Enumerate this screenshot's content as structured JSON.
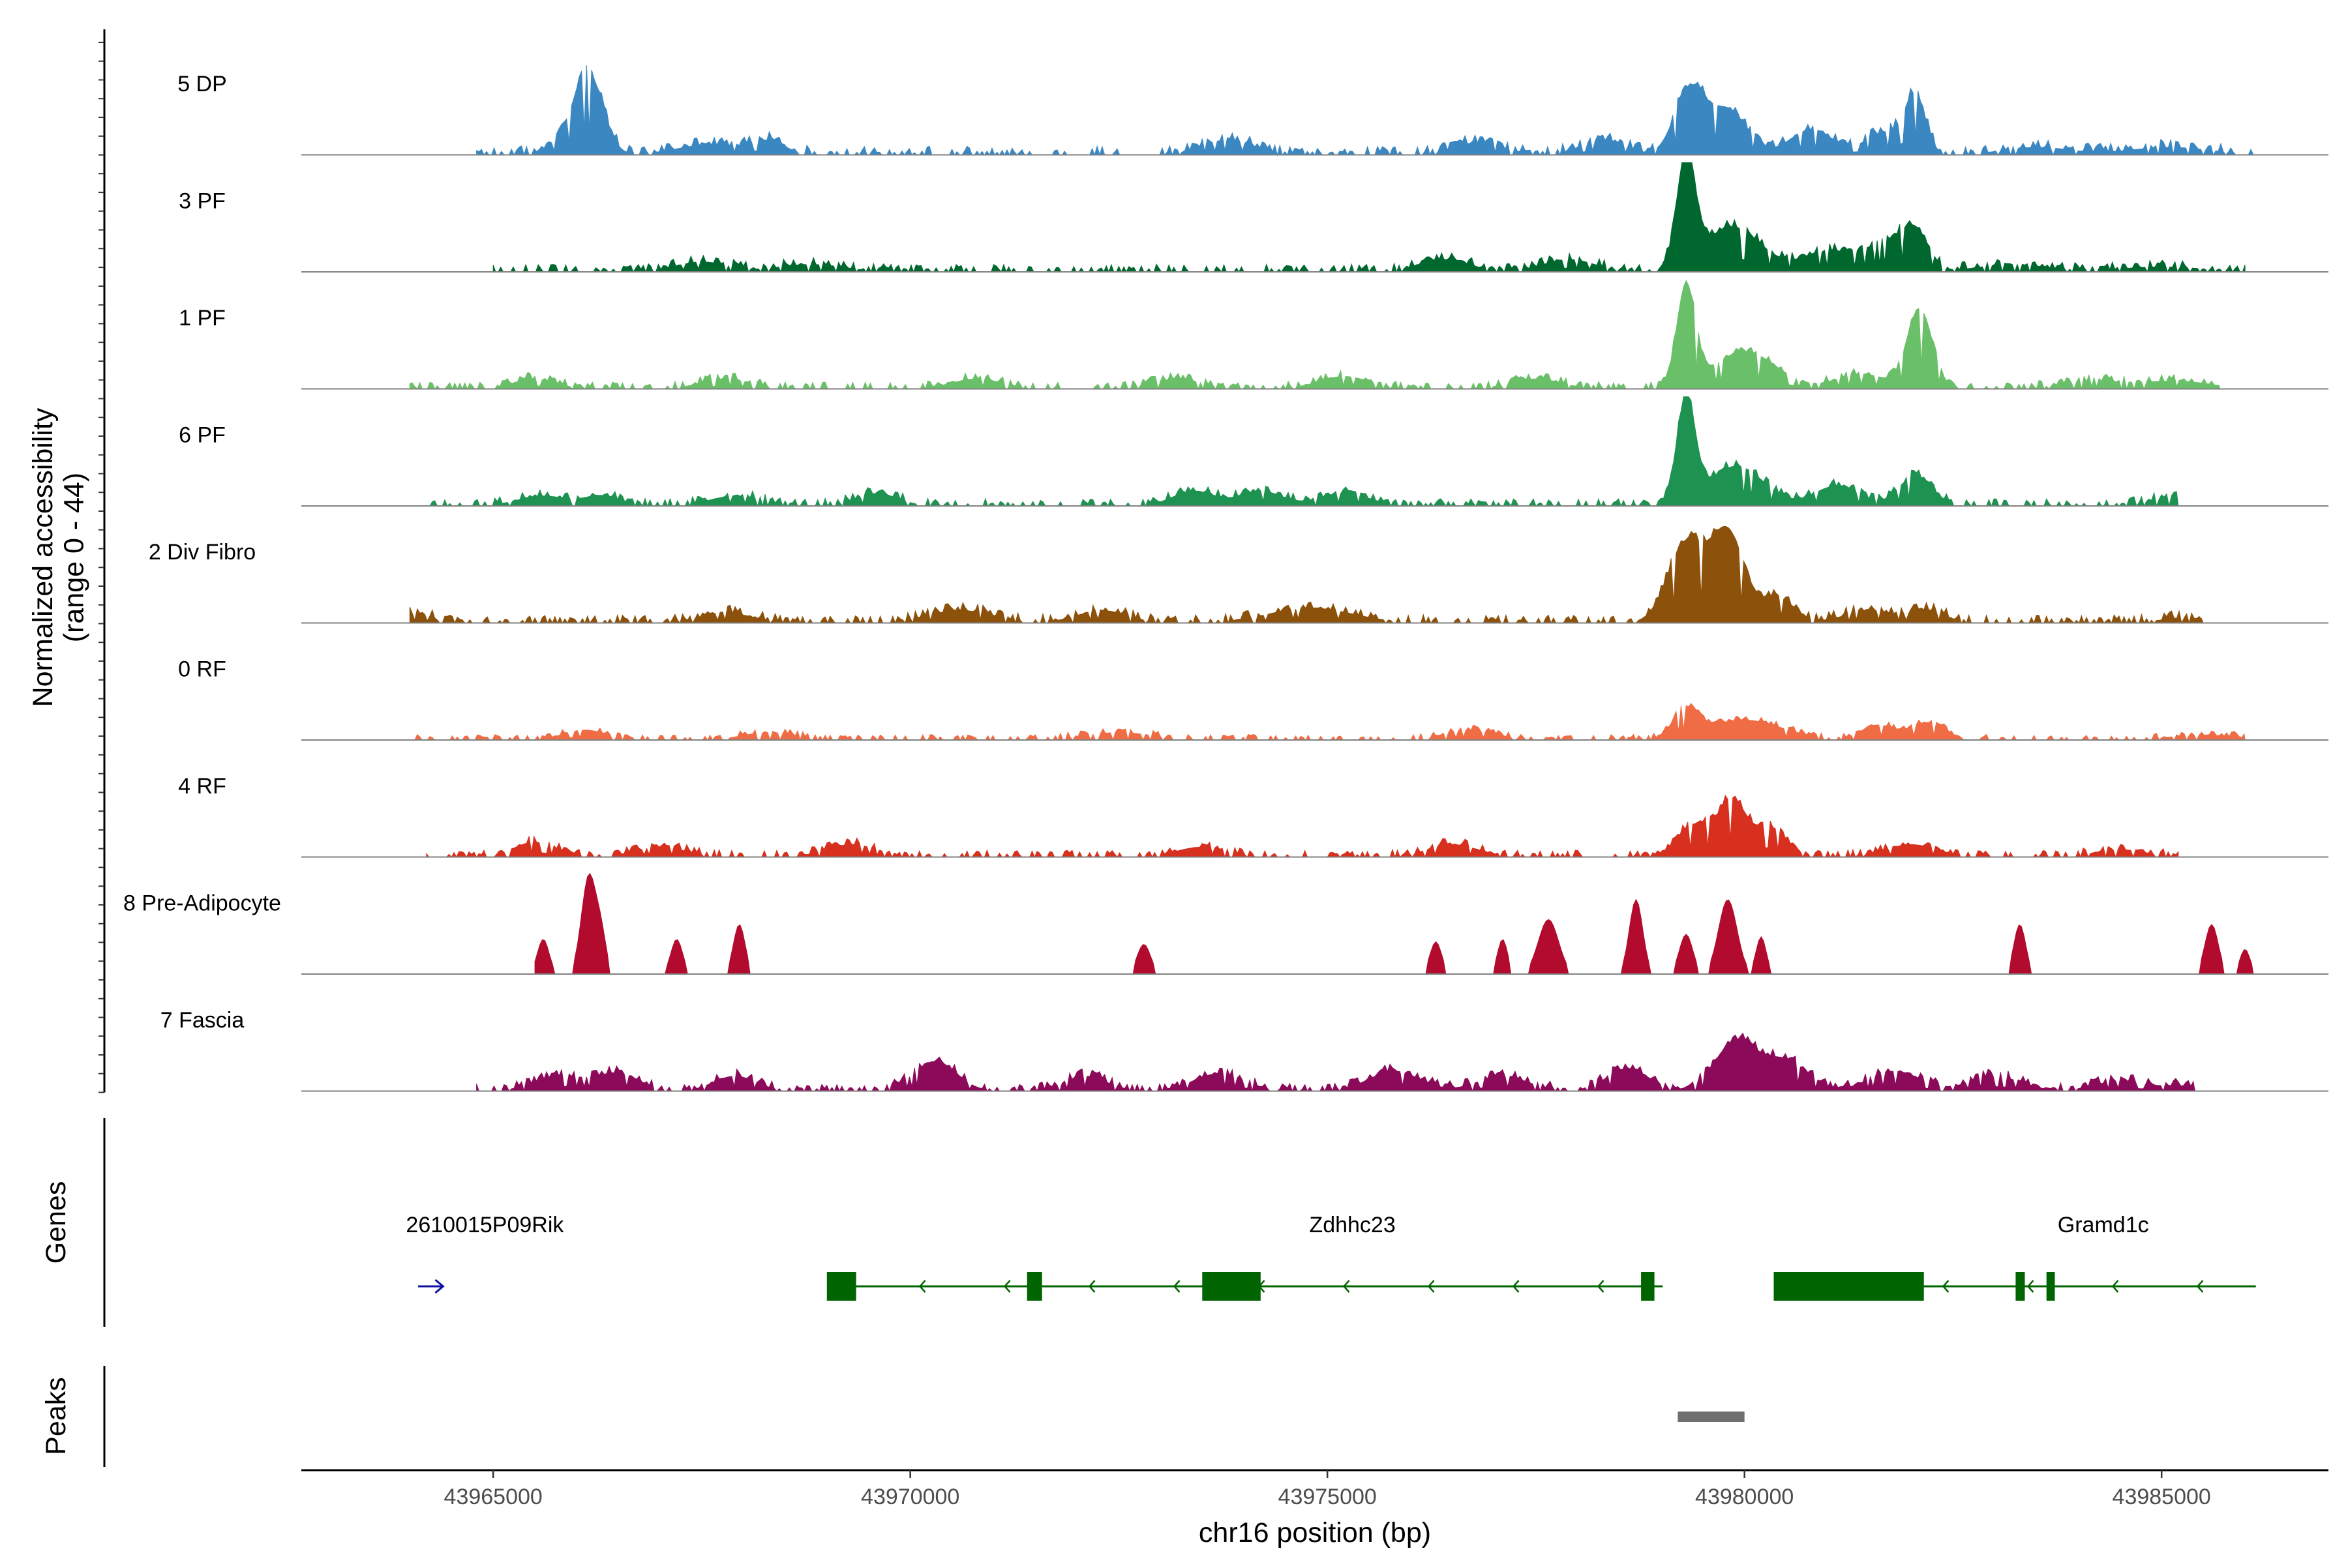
{
  "chart_data": {
    "type": "area",
    "title": "",
    "xlabel": "chr16 position (bp)",
    "ylabel": "Normalized accessibility\n(range 0 - 44)",
    "ylabel_lines": [
      "Normalized accessibility",
      "(range 0 - 44)"
    ],
    "ylim": [
      0,
      44
    ],
    "xlim": [
      43962700,
      43987000
    ],
    "x_ticks": [
      43965000,
      43970000,
      43975000,
      43980000,
      43985000
    ],
    "x_tick_labels": [
      "43965000",
      "43970000",
      "43975000",
      "43980000",
      "43985000"
    ],
    "tracks": [
      {
        "name": "5 DP",
        "color": "#3a87c2",
        "peaks": [
          [
            43966150,
            30,
            170
          ],
          [
            43965900,
            6,
            220
          ],
          [
            43967600,
            4,
            400
          ],
          [
            43968300,
            5,
            200
          ],
          [
            43973800,
            6,
            300
          ],
          [
            43976800,
            5,
            260
          ],
          [
            43978300,
            6,
            260
          ],
          [
            43979340,
            26,
            180
          ],
          [
            43979800,
            18,
            220
          ],
          [
            43980800,
            10,
            260
          ],
          [
            43981700,
            9,
            240
          ],
          [
            43982050,
            22,
            120
          ],
          [
            43983500,
            3,
            400
          ],
          [
            43985100,
            3,
            500
          ]
        ],
        "noise": 2.5,
        "range": [
          43964800,
          43986100
        ]
      },
      {
        "name": "3 PF",
        "color": "#00682f",
        "peaks": [
          [
            43967500,
            4,
            300
          ],
          [
            43968800,
            3,
            400
          ],
          [
            43976400,
            5,
            300
          ],
          [
            43977900,
            5,
            300
          ],
          [
            43979300,
            44,
            110
          ],
          [
            43979850,
            18,
            350
          ],
          [
            43981000,
            8,
            300
          ],
          [
            43981700,
            11,
            260
          ],
          [
            43982050,
            14,
            160
          ],
          [
            43983200,
            3,
            400
          ],
          [
            43985000,
            2,
            500
          ]
        ],
        "noise": 2.2,
        "range": [
          43965000,
          43986000
        ]
      },
      {
        "name": "1 PF",
        "color": "#6abf69",
        "peaks": [
          [
            43965500,
            4,
            250
          ],
          [
            43967800,
            4,
            300
          ],
          [
            43970800,
            4,
            300
          ],
          [
            43973200,
            4,
            300
          ],
          [
            43975200,
            5,
            300
          ],
          [
            43977500,
            4,
            300
          ],
          [
            43979300,
            40,
            110
          ],
          [
            43980000,
            15,
            380
          ],
          [
            43981400,
            6,
            300
          ],
          [
            43982100,
            32,
            150
          ],
          [
            43984200,
            3,
            400
          ],
          [
            43985200,
            3,
            400
          ]
        ],
        "noise": 2.0,
        "range": [
          43964000,
          43985700
        ]
      },
      {
        "name": "6 PF",
        "color": "#1e9250",
        "peaks": [
          [
            43965600,
            4,
            300
          ],
          [
            43966300,
            4,
            200
          ],
          [
            43967900,
            4,
            300
          ],
          [
            43969600,
            5,
            250
          ],
          [
            43973400,
            6,
            250
          ],
          [
            43974200,
            6,
            250
          ],
          [
            43975200,
            5,
            300
          ],
          [
            43979300,
            42,
            110
          ],
          [
            43979900,
            16,
            330
          ],
          [
            43981100,
            8,
            260
          ],
          [
            43982050,
            12,
            200
          ],
          [
            43985100,
            3,
            300
          ]
        ],
        "noise": 2.1,
        "range": [
          43964000,
          43985200
        ]
      },
      {
        "name": "2 Div Fibro",
        "color": "#8c510a",
        "peaks": [
          [
            43964100,
            4,
            150
          ],
          [
            43967800,
            4,
            300
          ],
          [
            43970600,
            5,
            400
          ],
          [
            43972300,
            5,
            300
          ],
          [
            43974800,
            6,
            500
          ],
          [
            43979300,
            32,
            220
          ],
          [
            43979800,
            36,
            200
          ],
          [
            43980400,
            10,
            200
          ],
          [
            43981500,
            5,
            300
          ],
          [
            43982200,
            5,
            200
          ],
          [
            43985300,
            2,
            300
          ]
        ],
        "noise": 2.3,
        "range": [
          43964000,
          43985500
        ]
      },
      {
        "name": "0 RF",
        "color": "#ef6c44",
        "peaks": [
          [
            43966100,
            4,
            250
          ],
          [
            43968300,
            3,
            300
          ],
          [
            43972500,
            3,
            400
          ],
          [
            43976700,
            4,
            300
          ],
          [
            43979300,
            11,
            150
          ],
          [
            43980000,
            8,
            450
          ],
          [
            43981600,
            6,
            200
          ],
          [
            43982200,
            7,
            200
          ],
          [
            43985500,
            2,
            400
          ]
        ],
        "noise": 1.6,
        "range": [
          43964000,
          43986000
        ]
      },
      {
        "name": "4 RF",
        "color": "#d7301f",
        "peaks": [
          [
            43965500,
            6,
            250
          ],
          [
            43967000,
            4,
            300
          ],
          [
            43969300,
            5,
            300
          ],
          [
            43973500,
            4,
            300
          ],
          [
            43976500,
            5,
            300
          ],
          [
            43979400,
            13,
            200
          ],
          [
            43979850,
            22,
            160
          ],
          [
            43980300,
            12,
            200
          ],
          [
            43982000,
            5,
            300
          ],
          [
            43984500,
            3,
            300
          ]
        ],
        "noise": 2.0,
        "range": [
          43964200,
          43985200
        ]
      },
      {
        "name": "8 Pre-Adipocyte",
        "color": "#b30b2d",
        "type": "spikes",
        "peaks": [
          [
            43965600,
            14,
            70
          ],
          [
            43966150,
            40,
            90
          ],
          [
            43966300,
            12,
            60
          ],
          [
            43967200,
            14,
            70
          ],
          [
            43967950,
            20,
            70
          ],
          [
            43972800,
            12,
            80
          ],
          [
            43976300,
            13,
            70
          ],
          [
            43977100,
            14,
            60
          ],
          [
            43977650,
            22,
            120
          ],
          [
            43978700,
            30,
            80
          ],
          [
            43979300,
            16,
            80
          ],
          [
            43979800,
            30,
            110
          ],
          [
            43980200,
            15,
            60
          ],
          [
            43983300,
            20,
            70
          ],
          [
            43985600,
            20,
            80
          ],
          [
            43986000,
            10,
            60
          ]
        ],
        "noise": 0,
        "range": [
          43965500,
          43986100
        ]
      },
      {
        "name": "7 Fascia",
        "color": "#8c0a5a",
        "peaks": [
          [
            43965800,
            6,
            300
          ],
          [
            43966500,
            7,
            250
          ],
          [
            43967900,
            6,
            250
          ],
          [
            43970300,
            12,
            250
          ],
          [
            43972100,
            6,
            250
          ],
          [
            43973700,
            7,
            300
          ],
          [
            43975800,
            8,
            300
          ],
          [
            43977100,
            6,
            300
          ],
          [
            43978600,
            9,
            250
          ],
          [
            43979900,
            20,
            250
          ],
          [
            43980500,
            12,
            250
          ],
          [
            43981800,
            8,
            300
          ],
          [
            43983000,
            6,
            300
          ],
          [
            43984500,
            4,
            300
          ],
          [
            43985300,
            2,
            300
          ]
        ],
        "noise": 2.2,
        "range": [
          43964800,
          43985400
        ]
      }
    ],
    "genes": [
      {
        "name": "2610015P09Rik",
        "strand": "+",
        "color": "#1010a0",
        "label_pos": 43964900,
        "start": 43964100,
        "end": 43964400,
        "exons": []
      },
      {
        "name": "Zdhhc23",
        "strand": "-",
        "color": "#006400",
        "label_pos": 43975300,
        "start": 43969100,
        "end": 43979020,
        "exons": [
          [
            43969000,
            43969350
          ],
          [
            43971400,
            43971580
          ],
          [
            43973500,
            43974200
          ],
          [
            43978760,
            43978920
          ]
        ]
      },
      {
        "name": "Gramd1c",
        "strand": "-",
        "color": "#006400",
        "label_pos": 43984300,
        "start": 43980350,
        "end": 43986130,
        "exons": [
          [
            43980350,
            43982150
          ],
          [
            43983250,
            43983360
          ],
          [
            43983620,
            43983720
          ]
        ]
      }
    ],
    "peaks_track": [
      [
        43979200,
        43980000
      ]
    ],
    "panel_labels": {
      "genes": "Genes",
      "peaks": "Peaks"
    }
  }
}
